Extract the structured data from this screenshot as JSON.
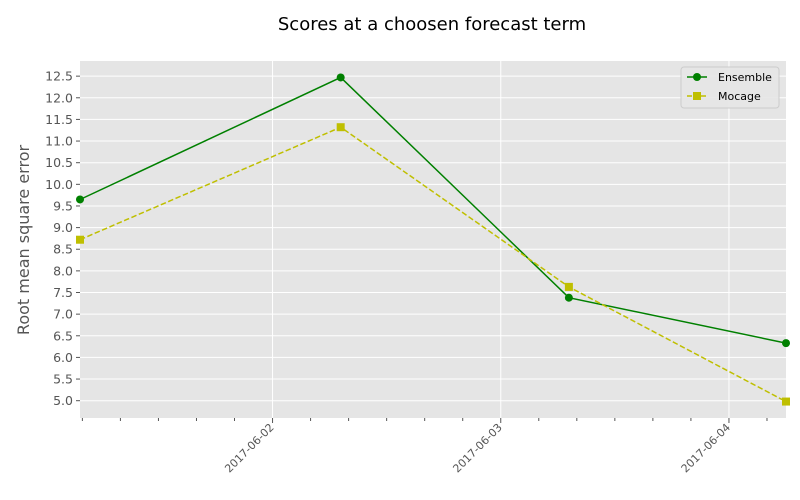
{
  "chart_data": {
    "type": "line",
    "title": "Scores at a choosen forecast term",
    "xlabel": "",
    "ylabel": "Root mean square error",
    "x_type": "date",
    "xlim": [
      "2017-06-01T03:45",
      "2017-06-04T06:00"
    ],
    "ylim": [
      4.6,
      12.85
    ],
    "x_ticks": [
      "2017-06-02",
      "2017-06-03",
      "2017-06-04"
    ],
    "x_minor_ticks": [
      "2017-06-01T04:00",
      "2017-06-01T08:00",
      "2017-06-01T12:00",
      "2017-06-01T16:00",
      "2017-06-01T20:00",
      "2017-06-02T04:00",
      "2017-06-02T08:00",
      "2017-06-02T12:00",
      "2017-06-02T16:00",
      "2017-06-02T20:00",
      "2017-06-03T04:00",
      "2017-06-03T08:00",
      "2017-06-03T12:00",
      "2017-06-03T16:00",
      "2017-06-03T20:00",
      "2017-06-04T04:00"
    ],
    "y_ticks": [
      "5.0",
      "5.5",
      "6.0",
      "6.5",
      "7.0",
      "7.5",
      "8.0",
      "8.5",
      "9.0",
      "9.5",
      "10.0",
      "10.5",
      "11.0",
      "11.5",
      "12.0",
      "12.5"
    ],
    "grid": true,
    "legend_position": "top-right",
    "series": [
      {
        "name": "Ensemble",
        "color": "#008000",
        "marker": "circle",
        "linestyle": "solid",
        "x": [
          "2017-06-01T03:45",
          "2017-06-02T07:10",
          "2017-06-03T07:10",
          "2017-06-04T06:00"
        ],
        "y": [
          9.65,
          12.47,
          7.38,
          6.33
        ]
      },
      {
        "name": "Mocage",
        "color": "#bfbf00",
        "marker": "square",
        "linestyle": "dashed",
        "x": [
          "2017-06-01T03:45",
          "2017-06-02T07:10",
          "2017-06-03T07:10",
          "2017-06-04T06:00"
        ],
        "y": [
          8.72,
          11.32,
          7.63,
          4.98
        ]
      }
    ]
  }
}
